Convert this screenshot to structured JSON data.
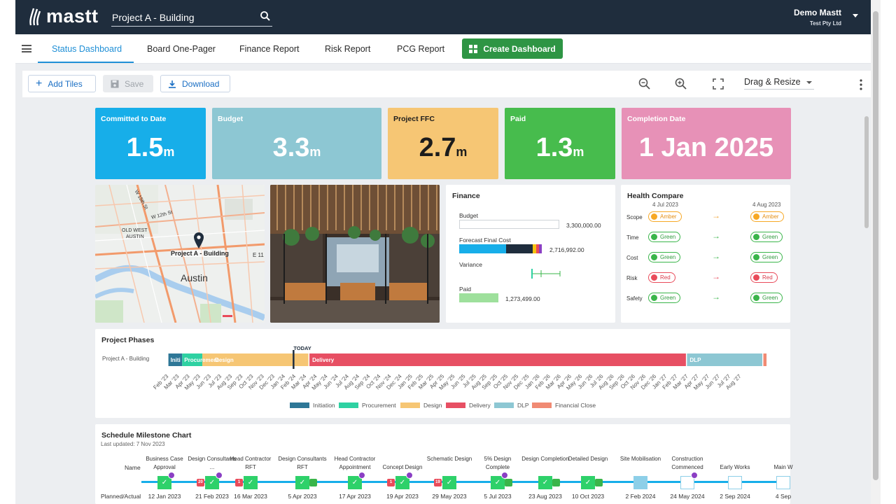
{
  "header": {
    "logo_text": "mastt",
    "project_name": "Project A - Building",
    "user_name": "Demo Mastt",
    "user_org": "Test Pty Ltd"
  },
  "nav": {
    "tabs": [
      "Status Dashboard",
      "Board One-Pager",
      "Finance Report",
      "Risk Report",
      "PCG Report"
    ],
    "active_tab": "Status Dashboard",
    "create_label": "Create Dashboard"
  },
  "toolbar": {
    "add_tiles": "Add Tiles",
    "save": "Save",
    "download": "Download",
    "mode": "Drag & Resize"
  },
  "kpis": [
    {
      "label": "Committed to Date",
      "value": "1.5",
      "unit": "m",
      "color": "#17aee9"
    },
    {
      "label": "Budget",
      "value": "3.3",
      "unit": "m",
      "color": "#8dc7d3"
    },
    {
      "label": "Project FFC",
      "value": "2.7",
      "unit": "m",
      "color": "#f6c674"
    },
    {
      "label": "Paid",
      "value": "1.3",
      "unit": "m",
      "color": "#47bc4d"
    },
    {
      "label": "Completion Date",
      "value": "1 Jan 2025",
      "unit": "",
      "color": "#e791b7"
    }
  ],
  "map": {
    "pin_label": "Project A - Building",
    "city": "Austin",
    "streets": [
      "W 15th St",
      "W 12th St",
      "OLD WEST AUSTIN",
      "E 11"
    ]
  },
  "finance": {
    "title": "Finance",
    "budget_label": "Budget",
    "budget_value": "3,300,000.00",
    "ffc_label": "Forecast Final Cost",
    "ffc_value": "2,716,992.00",
    "variance_label": "Variance",
    "paid_label": "Paid",
    "paid_value": "1,273,499.00"
  },
  "health": {
    "title": "Health Compare",
    "date_from": "4 Jul 2023",
    "date_to": "4 Aug 2023",
    "rows": [
      {
        "label": "Scope",
        "from": "Amber",
        "to": "Amber",
        "from_class": "amber",
        "to_class": "amber",
        "arrow_color": "#f0a030"
      },
      {
        "label": "Time",
        "from": "Green",
        "to": "Green",
        "from_class": "green",
        "to_class": "green",
        "arrow_color": "#3ab54a"
      },
      {
        "label": "Cost",
        "from": "Green",
        "to": "Green",
        "from_class": "green",
        "to_class": "green",
        "arrow_color": "#3ab54a"
      },
      {
        "label": "Risk",
        "from": "Red",
        "to": "Red",
        "from_class": "red",
        "to_class": "red",
        "arrow_color": "#e94b5a"
      },
      {
        "label": "Safety",
        "from": "Green",
        "to": "Green",
        "from_class": "green",
        "to_class": "green",
        "arrow_color": "#3ab54a"
      }
    ]
  },
  "phases": {
    "title": "Project Phases",
    "row_label": "Project A - Building",
    "today_label": "TODAY",
    "bar_labels": {
      "initiation": "Initi",
      "procurement": "Procurement",
      "design": "Design",
      "delivery": "Delivery",
      "dlp": "DLP"
    },
    "months": [
      "Feb '23",
      "Mar '23",
      "Apr '23",
      "May '23",
      "Jun '23",
      "Jul '23",
      "Aug '23",
      "Sep '23",
      "Oct '23",
      "Nov '23",
      "Dec '23",
      "Jan '24",
      "Feb '24",
      "Mar '24",
      "Apr '24",
      "May '24",
      "Jun '24",
      "Jul '24",
      "Aug '24",
      "Sep '24",
      "Oct '24",
      "Nov '24",
      "Dec '24",
      "Jan '25",
      "Feb '25",
      "Mar '25",
      "Apr '25",
      "May '25",
      "Jun '25",
      "Jul '25",
      "Aug '25",
      "Sep '25",
      "Oct '25",
      "Nov '25",
      "Dec '25",
      "Jan '26",
      "Feb '26",
      "Mar '26",
      "Apr '26",
      "May '26",
      "Jun '26",
      "Jul '26",
      "Aug '26",
      "Sep '26",
      "Oct '26",
      "Nov '26",
      "Dec '26",
      "Jan '27",
      "Feb '27",
      "Mar '27",
      "Apr '27",
      "May '27",
      "Jun '27",
      "Jul '27",
      "Aug '27"
    ],
    "legend": [
      {
        "name": "Initiation",
        "color": "#2e7797"
      },
      {
        "name": "Procurement",
        "color": "#2ed1a2"
      },
      {
        "name": "Design",
        "color": "#f6c674"
      },
      {
        "name": "Delivery",
        "color": "#e74f63"
      },
      {
        "name": "DLP",
        "color": "#8dc7d3"
      },
      {
        "name": "Financial Close",
        "color": "#f08a73"
      }
    ]
  },
  "milestones": {
    "title": "Schedule Milestone Chart",
    "updated": "Last updated: 7 Nov 2023",
    "name_label": "Name",
    "planned_label": "Planned/Actual",
    "items": [
      {
        "name": "Business Case Approval",
        "date": "12 Jan 2023"
      },
      {
        "name": "Design Consultants ...",
        "date": "21 Feb 2023"
      },
      {
        "name": "Head Contractor RFT",
        "date": "16 Mar 2023"
      },
      {
        "name": "Design Consultants RFT",
        "date": "5 Apr 2023"
      },
      {
        "name": "Head Contractor Appointment",
        "date": "17 Apr 2023"
      },
      {
        "name": "Concept Design",
        "date": "19 Apr 2023"
      },
      {
        "name": "Schematic Design",
        "date": "29 May 2023"
      },
      {
        "name": "5% Design Complete",
        "date": "5 Jul 2023"
      },
      {
        "name": "Design Completion",
        "date": "23 Aug 2023"
      },
      {
        "name": "Detailed Design",
        "date": "10 Oct 2023"
      },
      {
        "name": "Site Mobilisation",
        "date": "2 Feb 2024"
      },
      {
        "name": "Construction Commenced",
        "date": "24 May 2024"
      },
      {
        "name": "Early Works",
        "date": "2 Sep 2024"
      },
      {
        "name": "Main W",
        "date": "4 Sep"
      }
    ],
    "badges": [
      "20",
      "1",
      "1",
      "19"
    ]
  }
}
